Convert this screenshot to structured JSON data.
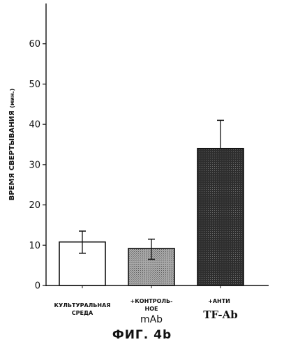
{
  "figure_title": "ФИГ. 4b",
  "chart_data": {
    "type": "bar",
    "title": "",
    "ylabel": "ВРЕМЯ СВЕРТЫВАНИЯ",
    "ylabel_unit": "(мин.)",
    "xlabel": "",
    "ylim": [
      0,
      70
    ],
    "yticks": [
      0,
      10,
      20,
      30,
      40,
      50,
      60
    ],
    "grid": false,
    "categories": [
      [
        "КУЛЬТУРАЛЬНАЯ",
        "СРЕДА"
      ],
      [
        "+КОНТРОЛЬ-",
        "НОЕ",
        "mAb"
      ],
      [
        "+АНТИ",
        "TF-Ab"
      ]
    ],
    "values": [
      10.8,
      9.2,
      34
    ],
    "error_low": [
      8.0,
      6.5,
      34
    ],
    "error_high": [
      13.5,
      11.5,
      41
    ],
    "bar_fills": [
      "#ffffff",
      "#9a9a9a",
      "#3a3a3a"
    ]
  }
}
